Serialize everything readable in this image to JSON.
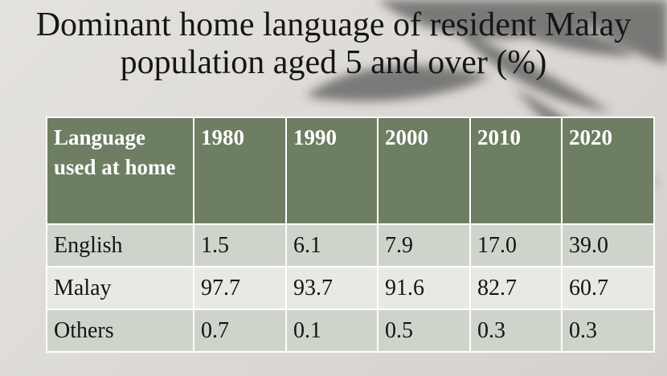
{
  "title": {
    "line1": "Dominant home language of resident Malay",
    "line2": "population aged 5 and over (%)"
  },
  "chart_data": {
    "type": "table",
    "columns": [
      "Language used at home",
      "1980",
      "1990",
      "2000",
      "2010",
      "2020"
    ],
    "rows": [
      {
        "label": "English",
        "values": [
          "1.5",
          "6.1",
          "7.9",
          "17.0",
          "39.0"
        ]
      },
      {
        "label": "Malay",
        "values": [
          "97.7",
          "93.7",
          "91.6",
          "82.7",
          "60.7"
        ]
      },
      {
        "label": "Others",
        "values": [
          "0.7",
          "0.1",
          "0.5",
          "0.3",
          "0.3"
        ]
      }
    ],
    "colors": {
      "header_bg": "#6e7e63",
      "row_light": "#e8e9e5",
      "row_tint": "#cfd4cb"
    }
  }
}
